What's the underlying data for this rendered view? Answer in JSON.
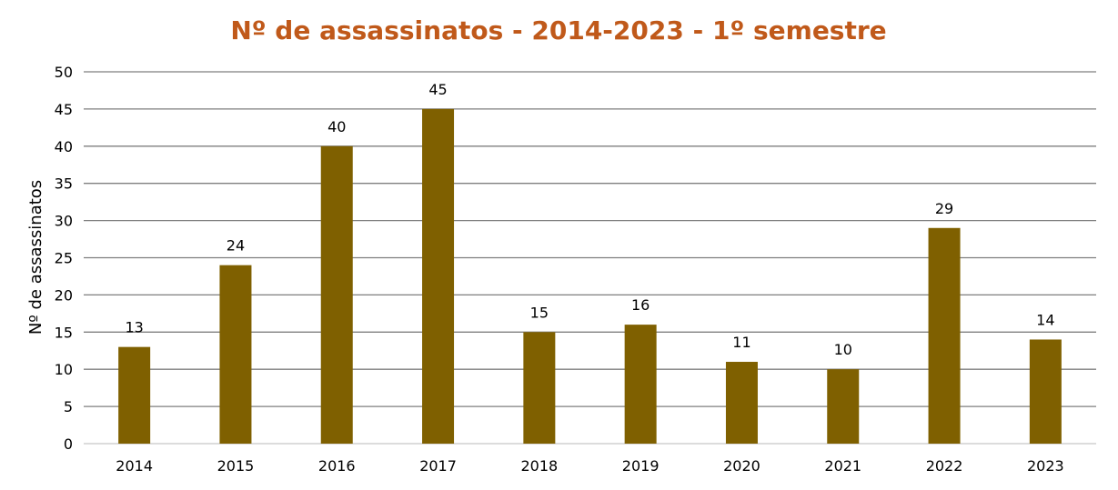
{
  "chart_data": {
    "type": "bar",
    "title": "Nº de assassinatos - 2014-2023 - 1º semestre",
    "xlabel": "",
    "ylabel": "Nº de assassinatos",
    "categories": [
      "2014",
      "2015",
      "2016",
      "2017",
      "2018",
      "2019",
      "2020",
      "2021",
      "2022",
      "2023"
    ],
    "values": [
      13,
      24,
      40,
      45,
      15,
      16,
      11,
      10,
      29,
      14
    ],
    "ylim": [
      0,
      50
    ],
    "yticks": [
      0,
      5,
      10,
      15,
      20,
      25,
      30,
      35,
      40,
      45,
      50
    ],
    "grid": true,
    "legend": "none",
    "colors": {
      "bar": "#7F6000",
      "title": "#C0591A",
      "grid": "#7f7f7f"
    }
  }
}
